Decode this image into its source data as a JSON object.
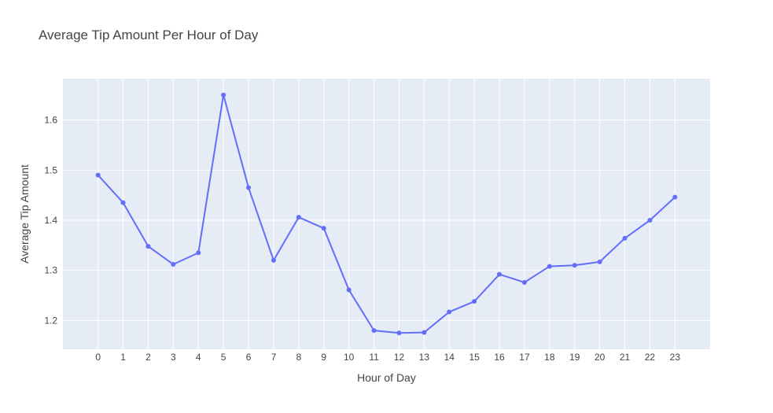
{
  "chart_data": {
    "type": "line",
    "title": "Average Tip Amount Per Hour of Day",
    "xlabel": "Hour of Day",
    "ylabel": "Average Tip Amount",
    "x": [
      "0",
      "1",
      "2",
      "3",
      "4",
      "5",
      "6",
      "7",
      "8",
      "9",
      "10",
      "11",
      "12",
      "13",
      "14",
      "15",
      "16",
      "17",
      "18",
      "19",
      "20",
      "21",
      "22",
      "23"
    ],
    "values": [
      1.49,
      1.435,
      1.348,
      1.312,
      1.335,
      1.65,
      1.465,
      1.32,
      1.406,
      1.384,
      1.261,
      1.18,
      1.175,
      1.176,
      1.217,
      1.238,
      1.292,
      1.276,
      1.308,
      1.31,
      1.317,
      1.364,
      1.4,
      1.446
    ],
    "yticks": [
      1.2,
      1.3,
      1.4,
      1.5,
      1.6
    ],
    "ylim": [
      1.1425,
      1.6825
    ],
    "xlim": [
      -1.4,
      24.4
    ],
    "grid": true,
    "colors": {
      "line": "#636efa",
      "plot_bg": "#e5ecf6",
      "grid": "#ffffff",
      "text": "#444444"
    }
  }
}
